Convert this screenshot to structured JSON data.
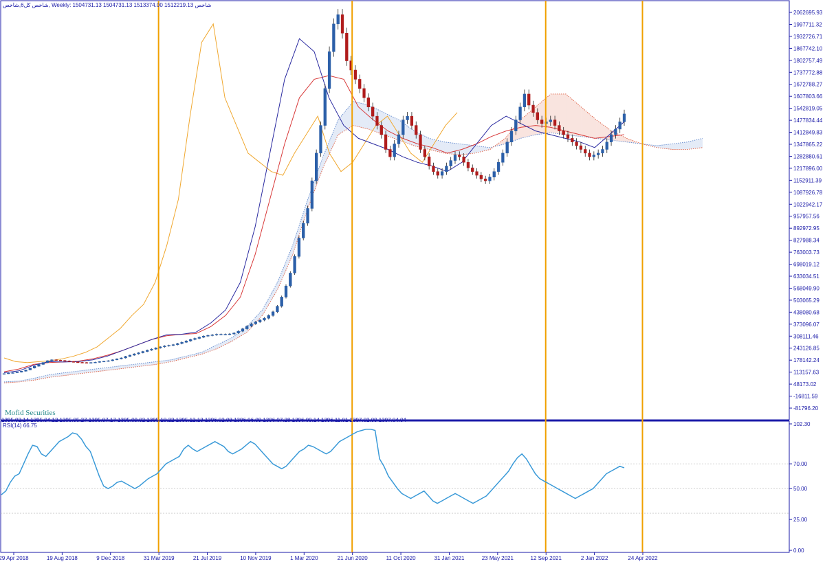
{
  "header": {
    "title": "شاخص کل6,شاخص, Weekly:  1504731.13 1504731.13 1513374.00 1512219.13  شاخص",
    "watermark": "Mofid Securities",
    "date_strip": "1395.02.14 1395.04.12 1395.05.27 1395.07.17 1395.09.02 1395.10.22 1395.12.13 1396.02.08 1396.06.09 1396.07.28 1396.09.14 1396.11.01 1397.02.09 1397.04.04"
  },
  "rsi_panel": {
    "label": "RSI(14) 66.75"
  },
  "colors": {
    "axis": "#1a1aa8",
    "bull": "#2b5fa8",
    "bear": "#b01c1c",
    "kijun": "#d83a3a",
    "tenkan": "#2a2aa0",
    "chikou": "#f0a830",
    "cloud_blue": "#6a90d0",
    "cloud_red": "#e06a50",
    "vline": "#f0a000",
    "rsi": "#3a9ad8"
  },
  "chart_data": [
    {
      "type": "candlestick",
      "timeframe": "Weekly",
      "price_ticks": [
        "2062695.93",
        "1997711.32",
        "1932726.71",
        "1867742.10",
        "1802757.49",
        "1737772.88",
        "1672788.27",
        "1607803.66",
        "1542819.05",
        "1477834.44",
        "1412849.83",
        "1347865.22",
        "1282880.61",
        "1217896.00",
        "1152911.39",
        "1087926.78",
        "1022942.17",
        "957957.56",
        "892972.95",
        "827988.34",
        "763003.73",
        "698019.12",
        "633034.51",
        "568049.90",
        "503065.29",
        "438080.68",
        "373096.07",
        "308111.46",
        "243126.85",
        "178142.24",
        "113157.63",
        "48173.02",
        "-16811.59",
        "-81796.20"
      ],
      "x_ticks": [
        "29 Apr 2018",
        "19 Aug 2018",
        "9 Dec 2018",
        "31 Mar 2019",
        "21 Jul 2019",
        "10 Nov 2019",
        "1 Mar 2020",
        "21 Jun 2020",
        "11 Oct 2020",
        "31 Jan 2021",
        "23 May 2021",
        "12 Sep 2021",
        "2 Jan 2022",
        "24 Apr 2022"
      ],
      "vertical_markers": [
        "31 Mar 2019",
        "21 Jun 2020",
        "12 Sep 2021",
        "24 Apr 2022"
      ],
      "last_close": 1512219.13,
      "close_series": [
        105000,
        108000,
        110000,
        113000,
        118000,
        125000,
        135000,
        145000,
        155000,
        165000,
        175000,
        180000,
        178000,
        176000,
        174000,
        170000,
        168000,
        166000,
        165000,
        164000,
        165000,
        167000,
        170000,
        172000,
        175000,
        180000,
        185000,
        190000,
        198000,
        205000,
        212000,
        218000,
        225000,
        232000,
        238000,
        244000,
        250000,
        255000,
        258000,
        262000,
        268000,
        275000,
        282000,
        290000,
        296000,
        302000,
        308000,
        312000,
        315000,
        318000,
        318000,
        318000,
        320000,
        325000,
        335000,
        348000,
        362000,
        375000,
        385000,
        395000,
        405000,
        420000,
        440000,
        470000,
        520000,
        580000,
        650000,
        740000,
        840000,
        920000,
        1000000,
        1150000,
        1300000,
        1450000,
        1650000,
        1850000,
        2000000,
        2050000,
        1950000,
        1800000,
        1750000,
        1700000,
        1650000,
        1600000,
        1550000,
        1500000,
        1450000,
        1400000,
        1320000,
        1280000,
        1350000,
        1400000,
        1480000,
        1500000,
        1450000,
        1400000,
        1320000,
        1280000,
        1230000,
        1200000,
        1180000,
        1200000,
        1230000,
        1260000,
        1290000,
        1280000,
        1250000,
        1220000,
        1200000,
        1180000,
        1160000,
        1150000,
        1170000,
        1200000,
        1250000,
        1300000,
        1360000,
        1420000,
        1480000,
        1550000,
        1620000,
        1560000,
        1520000,
        1480000,
        1460000,
        1470000,
        1480000,
        1450000,
        1420000,
        1400000,
        1380000,
        1360000,
        1340000,
        1320000,
        1300000,
        1280000,
        1290000,
        1300000,
        1320000,
        1360000,
        1400000,
        1430000,
        1470000,
        1512219
      ],
      "tenkan_series": [
        110000,
        120000,
        150000,
        170000,
        168000,
        170000,
        180000,
        200000,
        230000,
        260000,
        290000,
        315000,
        318000,
        330000,
        380000,
        450000,
        600000,
        900000,
        1300000,
        1700000,
        1920000,
        1850000,
        1600000,
        1450000,
        1380000,
        1350000,
        1320000,
        1280000,
        1250000,
        1230000,
        1200000,
        1250000,
        1350000,
        1450000,
        1500000,
        1460000,
        1420000,
        1400000,
        1380000,
        1360000,
        1330000,
        1400000,
        1470000
      ],
      "kijun_series": [
        115000,
        130000,
        155000,
        165000,
        168000,
        172000,
        185000,
        205000,
        230000,
        260000,
        290000,
        310000,
        318000,
        322000,
        360000,
        420000,
        520000,
        750000,
        1050000,
        1350000,
        1600000,
        1700000,
        1720000,
        1700000,
        1550000,
        1480000,
        1420000,
        1380000,
        1350000,
        1330000,
        1300000,
        1320000,
        1350000,
        1390000,
        1420000,
        1440000,
        1450000,
        1440000,
        1420000,
        1400000,
        1380000,
        1390000,
        1400000
      ],
      "chikou_series": [
        190000,
        170000,
        165000,
        170000,
        175000,
        185000,
        200000,
        220000,
        250000,
        300000,
        350000,
        420000,
        480000,
        600000,
        800000,
        1050000,
        1500000,
        1900000,
        2000000,
        1600000,
        1450000,
        1300000,
        1250000,
        1200000,
        1180000,
        1300000,
        1400000,
        1500000,
        1300000,
        1200000,
        1250000,
        1350000,
        1450000,
        1500000,
        1400000,
        1300000,
        1250000,
        1350000,
        1450000,
        1520000
      ],
      "cloud_span_a": [
        60000,
        65000,
        80000,
        100000,
        110000,
        120000,
        130000,
        140000,
        150000,
        160000,
        170000,
        180000,
        200000,
        220000,
        260000,
        300000,
        360000,
        450000,
        600000,
        800000,
        1050000,
        1280000,
        1480000,
        1580000,
        1560000,
        1520000,
        1480000,
        1420000,
        1380000,
        1360000,
        1350000,
        1340000,
        1330000,
        1350000,
        1380000,
        1400000,
        1410000,
        1400000,
        1390000,
        1380000,
        1370000,
        1360000,
        1350000,
        1340000,
        1350000,
        1360000,
        1380000
      ],
      "cloud_span_b": [
        55000,
        60000,
        70000,
        85000,
        95000,
        105000,
        115000,
        125000,
        135000,
        145000,
        155000,
        170000,
        190000,
        210000,
        240000,
        280000,
        330000,
        420000,
        560000,
        750000,
        1000000,
        1220000,
        1400000,
        1450000,
        1430000,
        1400000,
        1370000,
        1340000,
        1320000,
        1300000,
        1290000,
        1300000,
        1320000,
        1380000,
        1480000,
        1550000,
        1620000,
        1620000,
        1550000,
        1480000,
        1420000,
        1380000,
        1350000,
        1330000,
        1320000,
        1320000,
        1330000
      ]
    },
    {
      "type": "line",
      "name": "RSI(14)",
      "last_value": 66.75,
      "y_ticks": [
        "102.30",
        "70.00",
        "50.00",
        "25.00",
        "0.00"
      ],
      "levels": [
        70,
        50,
        30
      ],
      "values": [
        45,
        48,
        55,
        60,
        62,
        70,
        78,
        85,
        84,
        78,
        76,
        80,
        84,
        88,
        90,
        92,
        95,
        94,
        90,
        84,
        80,
        70,
        60,
        52,
        50,
        52,
        55,
        56,
        54,
        52,
        50,
        52,
        55,
        58,
        60,
        62,
        66,
        70,
        72,
        74,
        76,
        82,
        85,
        82,
        80,
        82,
        84,
        86,
        88,
        86,
        84,
        80,
        78,
        80,
        82,
        85,
        88,
        86,
        82,
        78,
        74,
        70,
        68,
        66,
        68,
        72,
        76,
        80,
        82,
        85,
        84,
        82,
        80,
        78,
        80,
        84,
        88,
        90,
        92,
        94,
        96,
        97,
        98,
        98,
        97,
        74,
        68,
        60,
        55,
        50,
        46,
        44,
        42,
        44,
        46,
        48,
        44,
        40,
        38,
        40,
        42,
        44,
        46,
        44,
        42,
        40,
        38,
        40,
        42,
        44,
        48,
        52,
        56,
        60,
        64,
        70,
        75,
        78,
        74,
        68,
        62,
        58,
        56,
        54,
        52,
        50,
        48,
        46,
        44,
        42,
        44,
        46,
        48,
        50,
        54,
        58,
        62,
        64,
        66,
        68,
        66.75
      ]
    }
  ]
}
